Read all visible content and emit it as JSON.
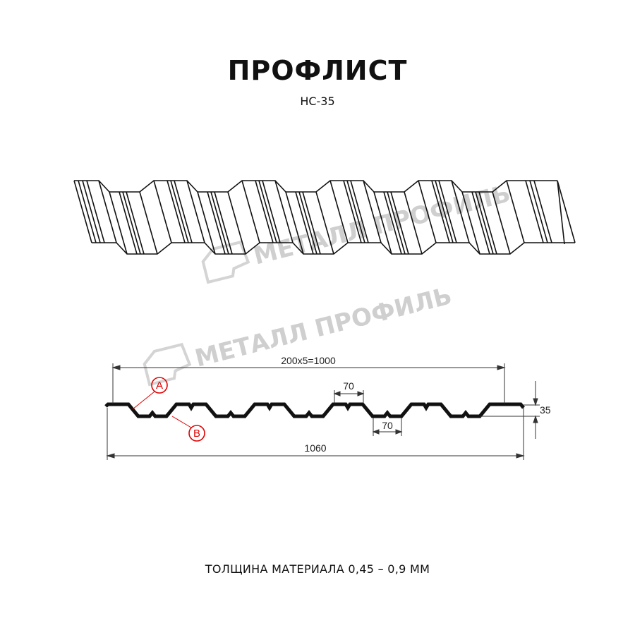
{
  "header": {
    "title": "ПРОФЛИСТ",
    "model": "НС-35"
  },
  "watermark": {
    "text": "МЕТАЛЛ ПРОФИЛЬ"
  },
  "drawing": {
    "dimensions": {
      "pitch_total": "200x5=1000",
      "full_width": "1060",
      "top_shelf": "70",
      "bottom_shelf": "70",
      "height": "35"
    },
    "callouts": {
      "a": "A",
      "b": "B"
    },
    "accent_color": "#e00000"
  },
  "footer": {
    "thickness": "ТОЛЩИНА МАТЕРИАЛА 0,45 – 0,9 ММ"
  }
}
